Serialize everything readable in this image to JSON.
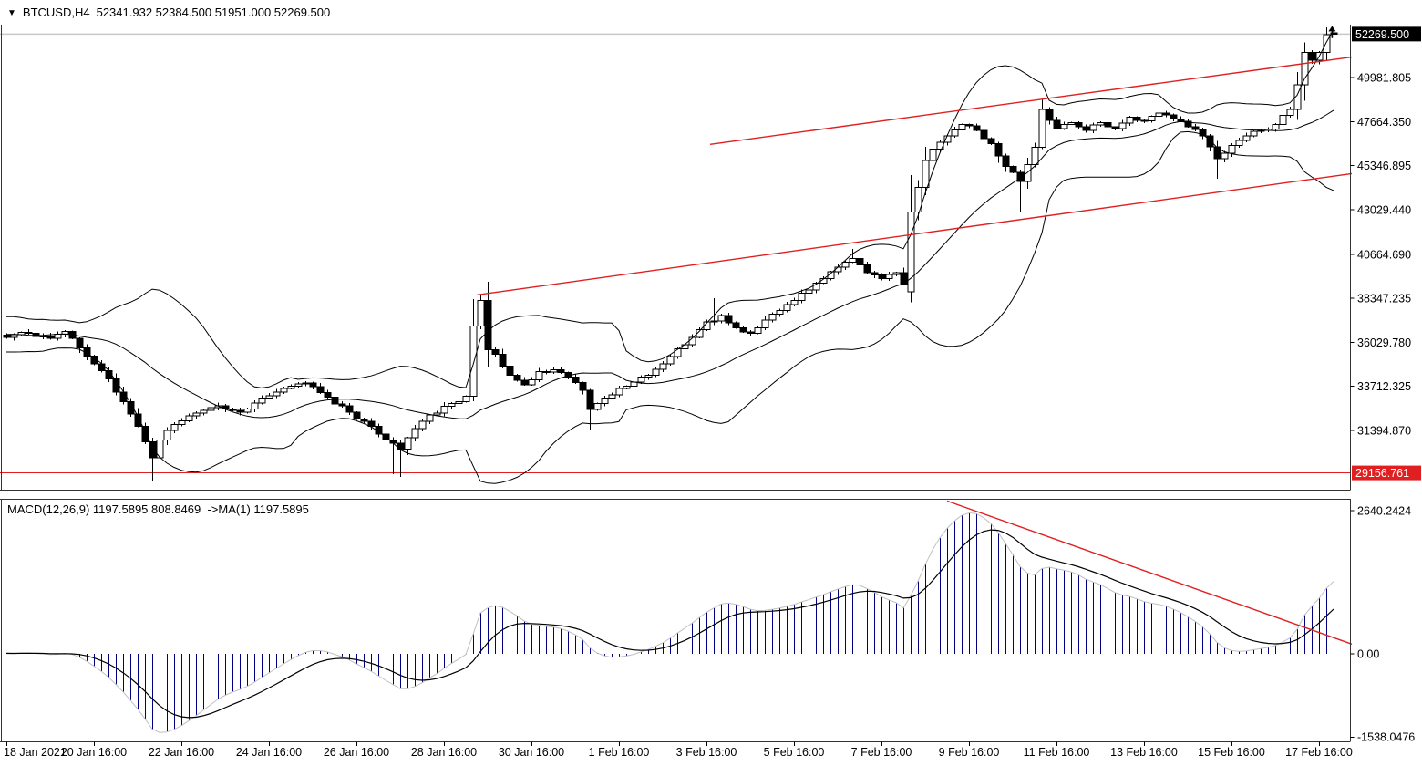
{
  "header": {
    "collapse_icon": "▼",
    "symbol": "BTCUSD,H4",
    "ohlc": "52341.932 52384.500 51951.000 52269.500",
    "open": "52341.932",
    "high": "52384.500",
    "low": "51951.000",
    "close": "52269.500"
  },
  "indicator_label": {
    "text": "MACD(12,26,9) 1197.5895 808.8469  ->MA(1) 1197.5895",
    "name": "MACD",
    "params": "12,26,9",
    "macd_value": "1197.5895",
    "signal_value": "808.8469",
    "ma_label": "->MA(1)",
    "ma_value": "1197.5895"
  },
  "chart_data": {
    "type": "candlestick",
    "title": "BTCUSD,H4",
    "panels": [
      "price",
      "macd"
    ],
    "price_axis": {
      "tick_labels": [
        "49981.805",
        "47664.350",
        "45346.895",
        "43029.440",
        "40664.690",
        "38347.235",
        "36029.780",
        "33712.325",
        "31394.870"
      ],
      "tick_values": [
        49981.805,
        47664.35,
        45346.895,
        43029.44,
        40664.69,
        38347.235,
        36029.78,
        33712.325,
        31394.87
      ],
      "current_price_box": {
        "label": "52269.500",
        "value": 52269.5,
        "bg": "#000000",
        "fg": "#ffffff"
      },
      "level_box": {
        "label": "29156.761",
        "value": 29156.761,
        "bg": "#e02020",
        "fg": "#ffffff"
      },
      "horizontal_line_value": 29156.761,
      "current_price_line_value": 52269.5
    },
    "macd_axis": {
      "tick_labels": [
        "2640.2424",
        "0.00",
        "-1538.0476"
      ],
      "tick_values": [
        2640.2424,
        0,
        -1538.0476
      ]
    },
    "time_axis": {
      "labels": [
        "18 Jan 2021",
        "20 Jan 16:00",
        "22 Jan 16:00",
        "24 Jan 16:00",
        "26 Jan 16:00",
        "28 Jan 16:00",
        "30 Jan 16:00",
        "1 Feb 16:00",
        "3 Feb 16:00",
        "5 Feb 16:00",
        "7 Feb 16:00",
        "9 Feb 16:00",
        "11 Feb 16:00",
        "13 Feb 16:00",
        "15 Feb 16:00",
        "17 Feb 16:00"
      ]
    },
    "bars": {
      "count": 183,
      "noise_seed": 77,
      "noise_amp": 110,
      "preroll_base": 36400,
      "preroll_amp": 700,
      "close_anchors": [
        [
          0,
          36300
        ],
        [
          2,
          36550
        ],
        [
          4,
          36350
        ],
        [
          6,
          36250
        ],
        [
          8,
          36600
        ],
        [
          10,
          35750
        ],
        [
          12,
          34900
        ],
        [
          14,
          34100
        ],
        [
          16,
          32900
        ],
        [
          18,
          31600
        ],
        [
          20,
          29950
        ],
        [
          21,
          30900
        ],
        [
          23,
          31700
        ],
        [
          26,
          32300
        ],
        [
          29,
          32700
        ],
        [
          32,
          32350
        ],
        [
          35,
          33100
        ],
        [
          38,
          33600
        ],
        [
          41,
          33900
        ],
        [
          44,
          33150
        ],
        [
          47,
          32350
        ],
        [
          50,
          31600
        ],
        [
          52,
          30900
        ],
        [
          54,
          30400
        ],
        [
          56,
          31500
        ],
        [
          58,
          32200
        ],
        [
          61,
          32800
        ],
        [
          63,
          33200
        ],
        [
          64,
          36900
        ],
        [
          65,
          38250
        ],
        [
          66,
          35650
        ],
        [
          67,
          35400
        ],
        [
          69,
          34300
        ],
        [
          71,
          33800
        ],
        [
          73,
          34500
        ],
        [
          75,
          34600
        ],
        [
          77,
          34200
        ],
        [
          79,
          33500
        ],
        [
          80,
          32500
        ],
        [
          82,
          33100
        ],
        [
          84,
          33600
        ],
        [
          86,
          33950
        ],
        [
          88,
          34300
        ],
        [
          90,
          34900
        ],
        [
          92,
          35700
        ],
        [
          94,
          36300
        ],
        [
          96,
          37100
        ],
        [
          98,
          37450
        ],
        [
          100,
          36800
        ],
        [
          102,
          36500
        ],
        [
          104,
          37200
        ],
        [
          106,
          37700
        ],
        [
          108,
          38250
        ],
        [
          110,
          38800
        ],
        [
          112,
          39400
        ],
        [
          114,
          40000
        ],
        [
          116,
          40450
        ],
        [
          118,
          39700
        ],
        [
          120,
          39400
        ],
        [
          122,
          39700
        ],
        [
          123,
          39100
        ],
        [
          124,
          42900
        ],
        [
          125,
          44200
        ],
        [
          126,
          45600
        ],
        [
          127,
          46200
        ],
        [
          129,
          46900
        ],
        [
          131,
          47500
        ],
        [
          133,
          47200
        ],
        [
          135,
          46500
        ],
        [
          137,
          45300
        ],
        [
          139,
          44500
        ],
        [
          141,
          46300
        ],
        [
          142,
          48300
        ],
        [
          144,
          47300
        ],
        [
          146,
          47600
        ],
        [
          148,
          47200
        ],
        [
          150,
          47600
        ],
        [
          152,
          47300
        ],
        [
          154,
          47900
        ],
        [
          156,
          47700
        ],
        [
          158,
          48100
        ],
        [
          160,
          47800
        ],
        [
          162,
          47400
        ],
        [
          164,
          46900
        ],
        [
          166,
          45700
        ],
        [
          168,
          46400
        ],
        [
          170,
          46900
        ],
        [
          172,
          47200
        ],
        [
          174,
          47500
        ],
        [
          176,
          48300
        ],
        [
          177,
          49600
        ],
        [
          178,
          51300
        ],
        [
          179,
          50900
        ],
        [
          180,
          51300
        ],
        [
          181,
          52250
        ],
        [
          182,
          52269.5
        ]
      ],
      "overrides": {
        "20": {
          "low": 28760
        },
        "53": {
          "low": 29100
        },
        "54": {
          "low": 28950
        },
        "64": {
          "high": 38300
        },
        "65": {
          "high": 38530
        },
        "80": {
          "low": 31450
        },
        "97": {
          "high": 38350
        },
        "116": {
          "high": 40950
        },
        "124": {
          "open": 38700,
          "high": 44850
        },
        "139": {
          "low": 42900
        },
        "142": {
          "high": 48800
        },
        "166": {
          "low": 44650
        },
        "181": {
          "high": 52620
        },
        "182": {
          "open": 52341.932,
          "high": 52384.5,
          "low": 51951.0,
          "close": 52269.5
        }
      }
    },
    "indicators": {
      "bollinger": {
        "period": 20,
        "deviation": 2,
        "color": "#000000"
      },
      "macd": {
        "fast": 12,
        "slow": 26,
        "signal_period": 9,
        "hist_color": "#000080",
        "outline_color": "#c0c0c0",
        "signal_color": "#000000",
        "plot_peak": 2600,
        "plot_trough": -1450
      }
    },
    "trendlines": [
      {
        "panel": "price",
        "x1_bar": 96.5,
        "y1_price": 46460,
        "x2_bar": 184.5,
        "y2_price": 51060,
        "color": "#e02020"
      },
      {
        "panel": "price",
        "x1_bar": 64.5,
        "y1_price": 38530,
        "x2_bar": 184.5,
        "y2_price": 44920,
        "color": "#e02020"
      },
      {
        "panel": "macd",
        "x1_bar": 129,
        "y1_value": 2820,
        "x2_bar": 184.5,
        "y2_value": 180,
        "color": "#e02020"
      }
    ],
    "marker": {
      "type": "arrow-up",
      "bar": 181.8,
      "tail_price": 52060,
      "tip_price": 52700,
      "color": "#000000"
    },
    "colors": {
      "bg": "#ffffff",
      "bull": "#ffffff",
      "bear": "#000000",
      "outline": "#000000",
      "frame": "#333333",
      "price_line": "#c8c8c8",
      "red": "#e02020"
    }
  }
}
